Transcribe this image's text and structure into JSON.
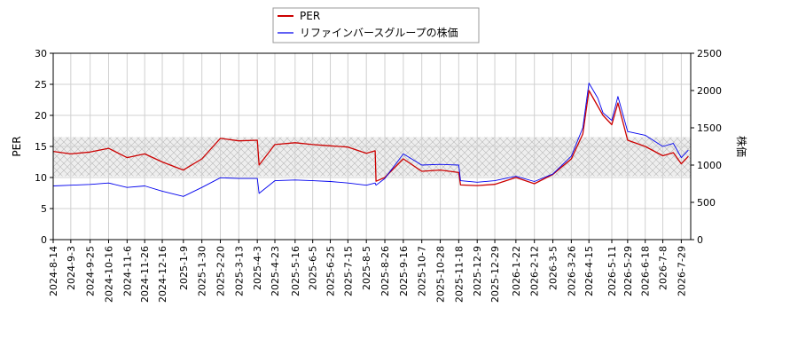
{
  "chart_data": {
    "type": "line",
    "xlabel": "",
    "ylabel_left": "PER",
    "ylabel_right": "株価",
    "ylim_left": [
      0,
      30
    ],
    "ylim_right": [
      0,
      2500
    ],
    "yticks_left": [
      0,
      5,
      10,
      15,
      20,
      25,
      30
    ],
    "yticks_right": [
      0,
      500,
      1000,
      1500,
      2000,
      2500
    ],
    "grid": true,
    "legend": "top-center",
    "band": {
      "ymin": 10.2,
      "ymax": 16.5,
      "style": "hatched-gray"
    },
    "x_ticks": [
      "2024-8-14",
      "2024-9-3",
      "2024-9-25",
      "2024-10-16",
      "2024-11-6",
      "2024-11-26",
      "2024-12-16",
      "2025-1-9",
      "2025-1-30",
      "2025-2-20",
      "2025-3-13",
      "2025-4-3",
      "2025-4-23",
      "2025-5-16",
      "2025-6-5",
      "2025-6-25",
      "2025-7-15",
      "2025-8-5",
      "2025-8-26",
      "2025-9-16",
      "2025-10-7",
      "2025-10-28",
      "2025-11-18",
      "2025-12-9",
      "2025-12-29",
      "2026-1-22",
      "2026-2-12",
      "2026-3-5",
      "2026-3-26",
      "2026-4-15",
      "2026-5-11",
      "2026-5-29",
      "2026-6-18",
      "2026-7-8",
      "2026-7-29"
    ],
    "series": [
      {
        "name": "PER",
        "color": "#cc0000",
        "axis": "left",
        "x": [
          "2024-8-14",
          "2024-9-3",
          "2024-9-25",
          "2024-10-16",
          "2024-11-6",
          "2024-11-26",
          "2024-12-16",
          "2025-1-9",
          "2025-1-30",
          "2025-2-20",
          "2025-3-13",
          "2025-4-3",
          "2025-4-5",
          "2025-4-23",
          "2025-5-16",
          "2025-6-5",
          "2025-6-25",
          "2025-7-15",
          "2025-8-5",
          "2025-8-15",
          "2025-8-16",
          "2025-8-26",
          "2025-9-16",
          "2025-10-7",
          "2025-10-28",
          "2025-11-18",
          "2025-11-20",
          "2025-12-9",
          "2025-12-29",
          "2026-1-22",
          "2026-2-12",
          "2026-3-5",
          "2026-3-26",
          "2026-4-8",
          "2026-4-15",
          "2026-4-25",
          "2026-5-1",
          "2026-5-11",
          "2026-5-18",
          "2026-5-29",
          "2026-6-18",
          "2026-7-8",
          "2026-7-20",
          "2026-7-29",
          "2026-8-6"
        ],
        "values": [
          14.2,
          13.8,
          14.1,
          14.7,
          13.2,
          13.8,
          12.5,
          11.2,
          13.0,
          16.3,
          15.9,
          16.0,
          12.0,
          15.3,
          15.6,
          15.3,
          15.1,
          14.9,
          13.9,
          14.3,
          9.4,
          10.0,
          13.0,
          11.0,
          11.2,
          10.8,
          8.8,
          8.7,
          8.9,
          10.0,
          9.0,
          10.5,
          13.0,
          17.0,
          24.0,
          21.5,
          20.0,
          18.5,
          22.0,
          16.0,
          15.0,
          13.5,
          14.0,
          12.2,
          13.4
        ]
      },
      {
        "name": "リファインバースグループの株価",
        "color": "#0000ee",
        "axis": "right",
        "x": [
          "2024-8-14",
          "2024-9-3",
          "2024-9-25",
          "2024-10-16",
          "2024-11-6",
          "2024-11-26",
          "2024-12-16",
          "2025-1-9",
          "2025-1-30",
          "2025-2-20",
          "2025-3-13",
          "2025-4-3",
          "2025-4-5",
          "2025-4-23",
          "2025-5-16",
          "2025-6-5",
          "2025-6-25",
          "2025-7-15",
          "2025-8-5",
          "2025-8-15",
          "2025-8-16",
          "2025-8-26",
          "2025-9-16",
          "2025-10-7",
          "2025-10-28",
          "2025-11-18",
          "2025-11-20",
          "2025-12-9",
          "2025-12-29",
          "2026-1-22",
          "2026-2-12",
          "2026-3-5",
          "2026-3-26",
          "2026-4-8",
          "2026-4-15",
          "2026-4-25",
          "2026-5-1",
          "2026-5-11",
          "2026-5-18",
          "2026-5-29",
          "2026-6-18",
          "2026-7-8",
          "2026-7-20",
          "2026-7-29",
          "2026-8-6"
        ],
        "values": [
          720,
          730,
          740,
          760,
          700,
          720,
          650,
          580,
          700,
          830,
          820,
          820,
          620,
          790,
          800,
          790,
          780,
          760,
          730,
          760,
          730,
          820,
          1150,
          1000,
          1010,
          1000,
          790,
          770,
          790,
          850,
          780,
          880,
          1120,
          1500,
          2100,
          1900,
          1700,
          1600,
          1920,
          1450,
          1400,
          1250,
          1290,
          1100,
          1200
        ]
      }
    ]
  }
}
